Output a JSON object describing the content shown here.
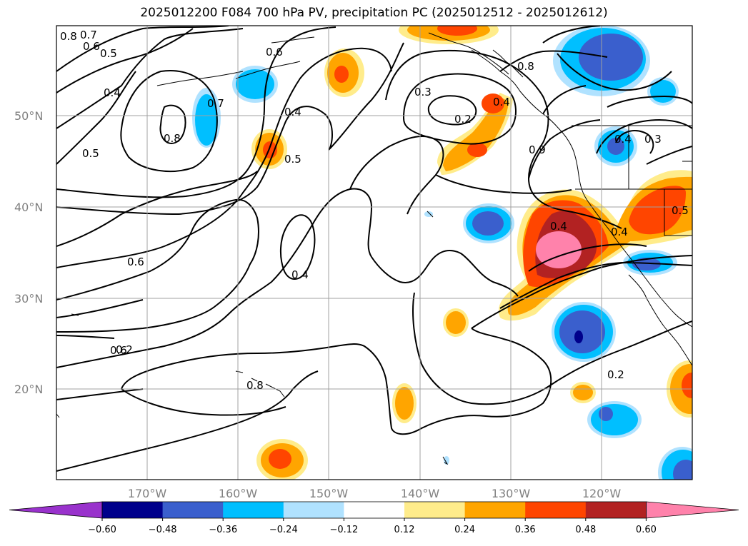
{
  "title": "2025012200 F084 700 hPa PV, precipitation PC (2025012512 - 2025012612)",
  "lat_ticks": [
    "50°N",
    "40°N",
    "30°N",
    "20°N"
  ],
  "lon_ticks": [
    "170°W",
    "160°W",
    "150°W",
    "140°W",
    "130°W",
    "120°W"
  ],
  "colorbar": {
    "tick_labels": [
      "−0.60",
      "−0.48",
      "−0.36",
      "−0.24",
      "−0.12",
      "0.12",
      "0.24",
      "0.36",
      "0.48",
      "0.60"
    ],
    "colors": [
      "#9932cc",
      "#00008b",
      "#3a5fcd",
      "#00bfff",
      "#b0e2ff",
      "#ffffff",
      "#ffec8b",
      "#ffa500",
      "#ff4500",
      "#b22222",
      "#ff82ab"
    ]
  },
  "contour_labels": [
    "0.8",
    "0.7",
    "0.6",
    "0.5",
    "0.4",
    "0.7",
    "0.8",
    "0.5",
    "0.6",
    "0.4",
    "0.5",
    "0.3",
    "0.2",
    "0.4",
    "0.8",
    "0.6",
    "0.4",
    "0.3",
    "0.9",
    "0.4",
    "0.4",
    "0.5",
    "0.4",
    "0.6",
    "0.2",
    "0.8",
    "0.2"
  ],
  "colors": {
    "contour": "#000000",
    "grid": "#a0a0a0",
    "tick_text": "#808080"
  }
}
